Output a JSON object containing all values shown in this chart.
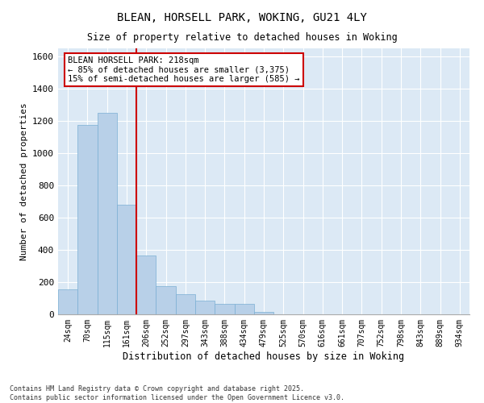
{
  "title_line1": "BLEAN, HORSELL PARK, WOKING, GU21 4LY",
  "title_line2": "Size of property relative to detached houses in Woking",
  "xlabel": "Distribution of detached houses by size in Woking",
  "ylabel": "Number of detached properties",
  "bar_color": "#b8d0e8",
  "bar_edge_color": "#7aafd4",
  "background_color": "#dce9f5",
  "grid_color": "#ffffff",
  "categories": [
    "24sqm",
    "70sqm",
    "115sqm",
    "161sqm",
    "206sqm",
    "252sqm",
    "297sqm",
    "343sqm",
    "388sqm",
    "434sqm",
    "479sqm",
    "525sqm",
    "570sqm",
    "616sqm",
    "661sqm",
    "707sqm",
    "752sqm",
    "798sqm",
    "843sqm",
    "889sqm",
    "934sqm"
  ],
  "values": [
    155,
    1175,
    1250,
    680,
    365,
    175,
    125,
    85,
    65,
    65,
    15,
    0,
    0,
    0,
    0,
    0,
    0,
    0,
    0,
    0,
    0
  ],
  "ylim": [
    0,
    1650
  ],
  "yticks": [
    0,
    200,
    400,
    600,
    800,
    1000,
    1200,
    1400,
    1600
  ],
  "vline_index": 3.5,
  "vline_color": "#cc0000",
  "annotation_text": "BLEAN HORSELL PARK: 218sqm\n← 85% of detached houses are smaller (3,375)\n15% of semi-detached houses are larger (585) →",
  "annotation_box_color": "#ffffff",
  "annotation_box_edge": "#cc0000",
  "footnote": "Contains HM Land Registry data © Crown copyright and database right 2025.\nContains public sector information licensed under the Open Government Licence v3.0.",
  "figsize": [
    6.0,
    5.0
  ],
  "dpi": 100
}
